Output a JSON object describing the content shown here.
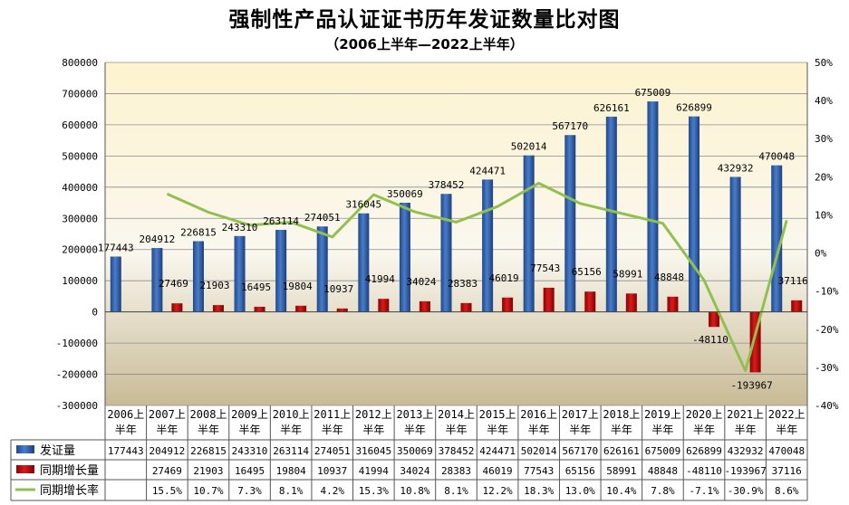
{
  "title": "强制性产品认证证书历年发证数量比对图",
  "subtitle": "（2006上半年—2022上半年）",
  "chart_data": {
    "type": "bar",
    "categories": [
      "2006上半年",
      "2007上半年",
      "2008上半年",
      "2009上半年",
      "2010上半年",
      "2011上半年",
      "2012上半年",
      "2013上半年",
      "2014上半年",
      "2015上半年",
      "2016上半年",
      "2017上半年",
      "2018上半年",
      "2019上半年",
      "2020上半年",
      "2021上半年",
      "2022上半年"
    ],
    "category_lines": [
      [
        "2006上",
        "半年"
      ],
      [
        "2007上",
        "半年"
      ],
      [
        "2008上",
        "半年"
      ],
      [
        "2009上",
        "半年"
      ],
      [
        "2010上",
        "半年"
      ],
      [
        "2011上",
        "半年"
      ],
      [
        "2012上",
        "半年"
      ],
      [
        "2013上",
        "半年"
      ],
      [
        "2014上",
        "半年"
      ],
      [
        "2015上",
        "半年"
      ],
      [
        "2016上",
        "半年"
      ],
      [
        "2017上",
        "半年"
      ],
      [
        "2018上",
        "半年"
      ],
      [
        "2019上",
        "半年"
      ],
      [
        "2020上",
        "半年"
      ],
      [
        "2021上",
        "半年"
      ],
      [
        "2022上",
        "半年"
      ]
    ],
    "series": [
      {
        "name": "发证量",
        "type": "bar",
        "axis": "left",
        "color": "#2f5fa8",
        "values": [
          177443,
          204912,
          226815,
          243310,
          263114,
          274051,
          316045,
          350069,
          378452,
          424471,
          502014,
          567170,
          626161,
          675009,
          626899,
          432932,
          470048
        ]
      },
      {
        "name": "同期增长量",
        "type": "bar",
        "axis": "left",
        "color": "#c00000",
        "values": [
          null,
          27469,
          21903,
          16495,
          19804,
          10937,
          41994,
          34024,
          28383,
          46019,
          77543,
          65156,
          58991,
          48848,
          -48110,
          -193967,
          37116
        ]
      },
      {
        "name": "同期增长率",
        "type": "line",
        "axis": "right",
        "color": "#92c050",
        "values": [
          null,
          15.5,
          10.7,
          7.3,
          8.1,
          4.2,
          15.3,
          10.8,
          8.1,
          12.2,
          18.3,
          13.0,
          10.4,
          7.8,
          -7.1,
          -30.9,
          8.6
        ],
        "labels": [
          "",
          "15.5%",
          "10.7%",
          "7.3%",
          "8.1%",
          "4.2%",
          "15.3%",
          "10.8%",
          "8.1%",
          "12.2%",
          "18.3%",
          "13.0%",
          "10.4%",
          "7.8%",
          "-7.1%",
          "-30.9%",
          "8.6%"
        ]
      }
    ],
    "y_left": {
      "min": -300000,
      "max": 800000,
      "step": 100000
    },
    "y_right": {
      "min": -40,
      "max": 50,
      "step": 10,
      "unit": "%"
    },
    "data_table": true,
    "background": "gradient-beige"
  }
}
